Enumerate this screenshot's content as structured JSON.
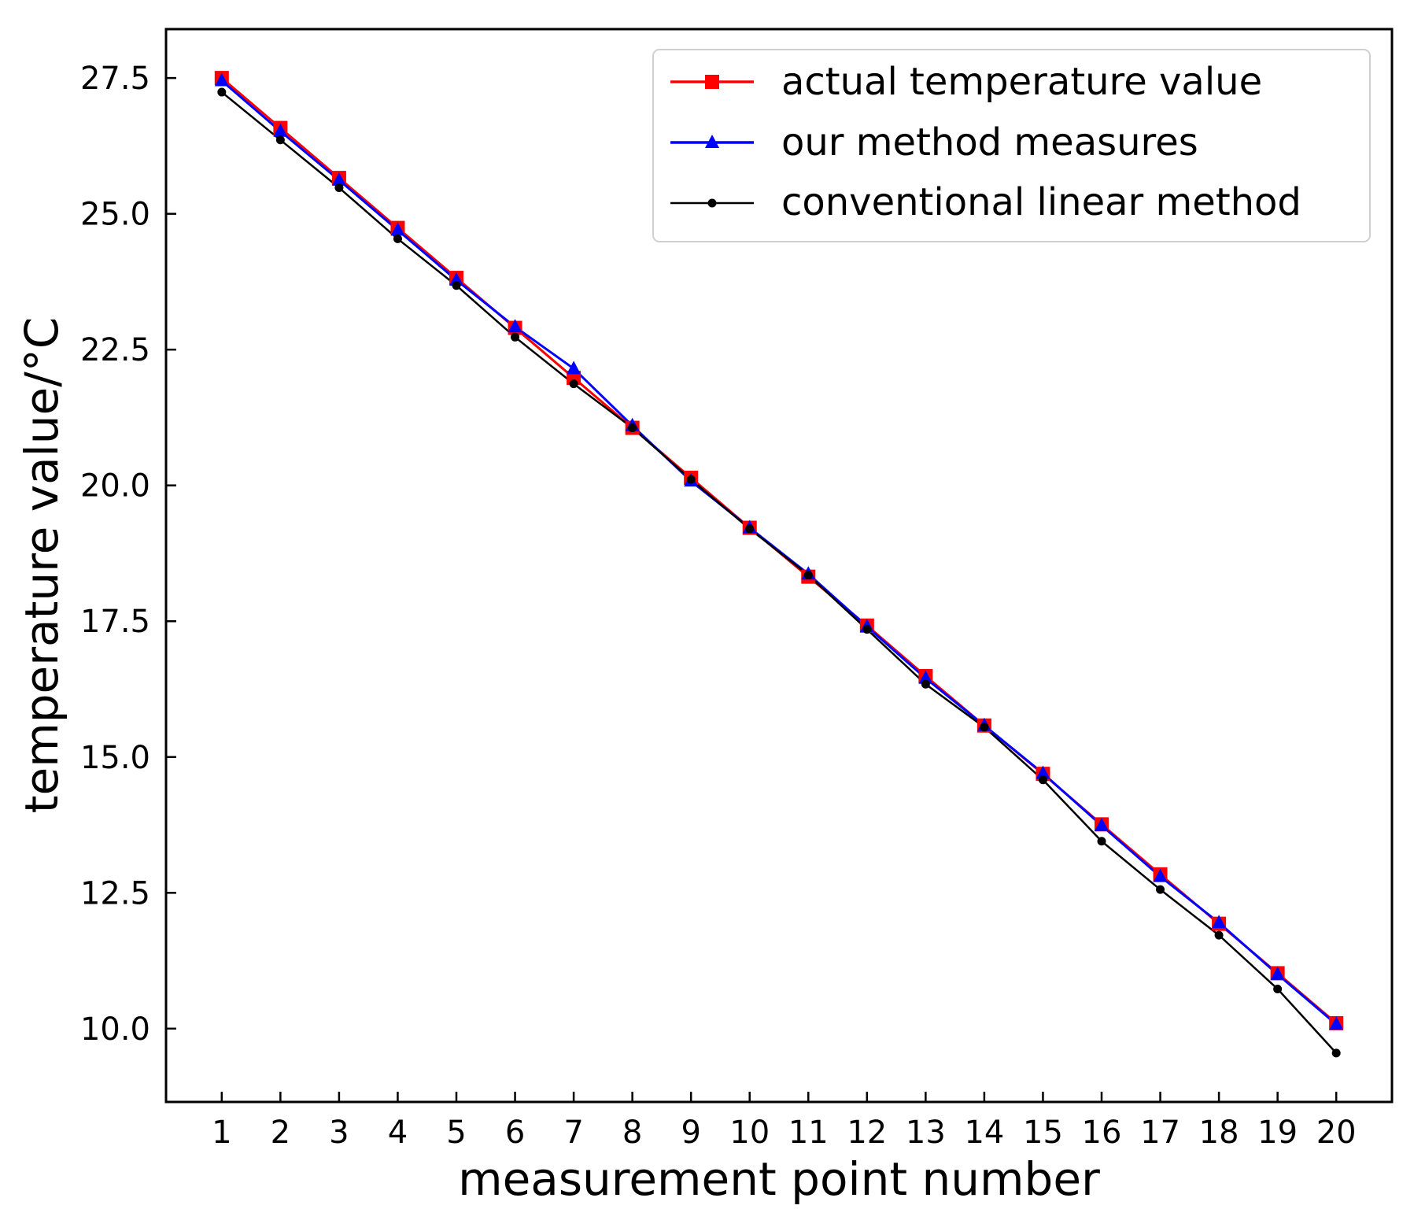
{
  "chart_data": {
    "type": "line",
    "title": "",
    "xlabel": "measurement point number",
    "ylabel": "temperature value/°C",
    "x": [
      1,
      2,
      3,
      4,
      5,
      6,
      7,
      8,
      9,
      10,
      11,
      12,
      13,
      14,
      15,
      16,
      17,
      18,
      19,
      20
    ],
    "x_tick_labels": [
      "1",
      "2",
      "3",
      "4",
      "5",
      "6",
      "7",
      "8",
      "9",
      "10",
      "11",
      "12",
      "13",
      "14",
      "15",
      "16",
      "17",
      "18",
      "19",
      "20"
    ],
    "xlim": [
      0.05,
      20.95
    ],
    "ylim": [
      8.65,
      28.4
    ],
    "y_ticks": [
      10.0,
      12.5,
      15.0,
      17.5,
      20.0,
      22.5,
      25.0,
      27.5
    ],
    "y_tick_labels": [
      "10.0",
      "12.5",
      "15.0",
      "17.5",
      "20.0",
      "22.5",
      "25.0",
      "27.5"
    ],
    "grid": false,
    "legend_position": "top-right",
    "series": [
      {
        "name": "actual temperature value",
        "color": "#ff0000",
        "marker": "square",
        "values": [
          27.5,
          26.58,
          25.66,
          24.74,
          23.82,
          22.9,
          21.98,
          21.06,
          20.14,
          19.22,
          18.32,
          17.42,
          16.49,
          15.58,
          14.69,
          13.76,
          12.84,
          11.93,
          11.02,
          10.1
        ]
      },
      {
        "name": "our method measures",
        "color": "#0000ff",
        "marker": "triangle",
        "values": [
          27.45,
          26.52,
          25.62,
          24.7,
          23.78,
          22.92,
          22.15,
          21.1,
          20.08,
          19.22,
          18.37,
          17.4,
          16.45,
          15.58,
          14.7,
          13.74,
          12.8,
          11.95,
          11.0,
          10.08
        ]
      },
      {
        "name": "conventional linear method",
        "color": "#000000",
        "marker": "dot",
        "values": [
          27.24,
          26.36,
          25.48,
          24.54,
          23.68,
          22.73,
          21.87,
          21.06,
          20.11,
          19.2,
          18.35,
          17.35,
          16.34,
          15.55,
          14.58,
          13.45,
          12.56,
          11.72,
          10.73,
          9.55
        ]
      }
    ]
  }
}
